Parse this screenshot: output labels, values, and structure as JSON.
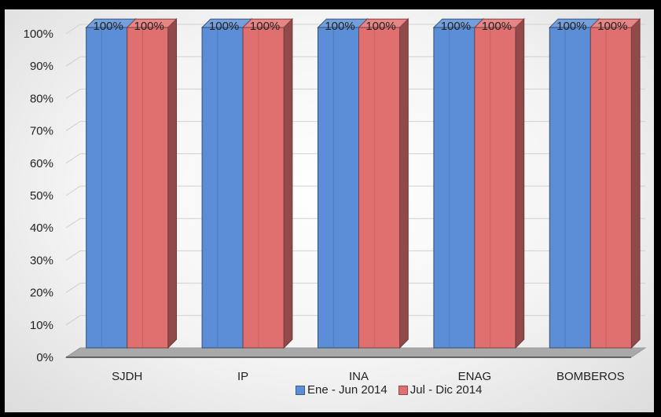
{
  "chart_data": {
    "type": "bar",
    "categories": [
      "SJDH",
      "IP",
      "INA",
      "ENAG",
      "BOMBEROS"
    ],
    "series": [
      {
        "name": "Ene - Jun 2014",
        "values": [
          100,
          100,
          100,
          100,
          100
        ],
        "color": "#5b8ed6"
      },
      {
        "name": "Jul - Dic 2014",
        "values": [
          100,
          100,
          100,
          100,
          100
        ],
        "color": "#e07070"
      }
    ],
    "data_labels": [
      "100%",
      "100%",
      "100%",
      "100%",
      "100%",
      "100%",
      "100%",
      "100%",
      "100%",
      "100%"
    ],
    "ylim": [
      0,
      100
    ],
    "yticks": [
      "0%",
      "10%",
      "20%",
      "30%",
      "40%",
      "50%",
      "60%",
      "70%",
      "80%",
      "90%",
      "100%"
    ],
    "title": "",
    "xlabel": "",
    "ylabel": "",
    "legend_position": "bottom",
    "grid": true,
    "style": "3d-bar"
  }
}
